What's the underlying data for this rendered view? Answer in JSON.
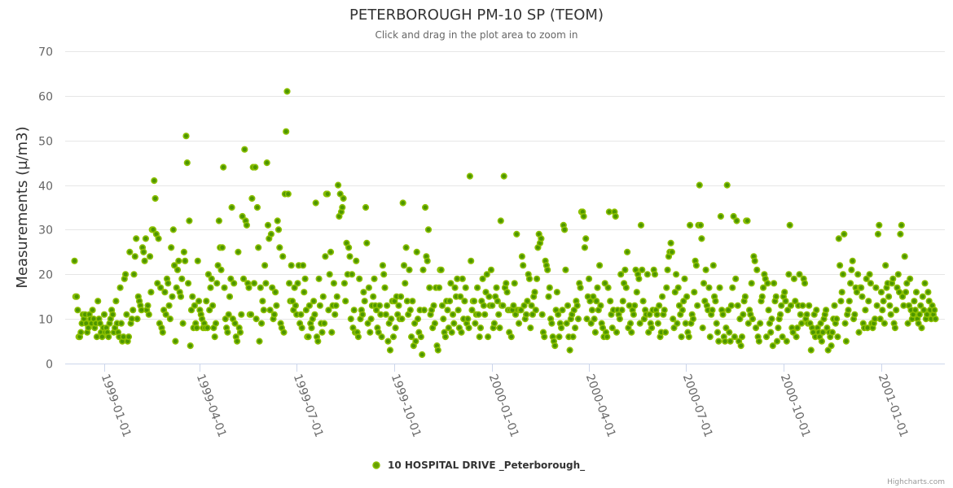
{
  "chart_data": {
    "type": "scatter",
    "title": "PETERBOROUGH PM-10 SP (TEOM)",
    "subtitle": "Click and drag in the plot area to zoom in",
    "xlabel": "",
    "ylabel": "Measurements (µ/m3)",
    "ylim": [
      0,
      70
    ],
    "yticks": [
      "0",
      "10",
      "20",
      "30",
      "40",
      "50",
      "60",
      "70"
    ],
    "xticks": [
      "1999-01-01",
      "1999-04-01",
      "1999-07-01",
      "1999-10-01",
      "2000-01-01",
      "2000-04-01",
      "2000-07-01",
      "2000-10-01",
      "2001-01-01"
    ],
    "grid": true,
    "legend_position": "bottom-center",
    "series": [
      {
        "name": "10 HOSPITAL DRIVE _Peterborough_",
        "color": "#66a000",
        "x_start": "1998-12-04",
        "x_interval_days": 1,
        "values": [
          23,
          15,
          15,
          12,
          6,
          6,
          7,
          9,
          11,
          10,
          11,
          9,
          7,
          8,
          11,
          10,
          9,
          12,
          10,
          8,
          9,
          6,
          14,
          10,
          9,
          7,
          6,
          8,
          11,
          7,
          8,
          7,
          6,
          9,
          10,
          12,
          11,
          7,
          8,
          14,
          9,
          7,
          6,
          17,
          9,
          5,
          6,
          19,
          20,
          11,
          5,
          6,
          25,
          9,
          10,
          12,
          20,
          24,
          28,
          10,
          15,
          14,
          13,
          12,
          26,
          25,
          23,
          28,
          12,
          13,
          11,
          24,
          16,
          30,
          30,
          41,
          37,
          29,
          18,
          28,
          9,
          17,
          8,
          7,
          12,
          16,
          11,
          19,
          18,
          13,
          10,
          26,
          15,
          30,
          22,
          5,
          17,
          21,
          23,
          16,
          15,
          19,
          9,
          25,
          23,
          51,
          45,
          18,
          32,
          4,
          12,
          15,
          8,
          13,
          9,
          8,
          23,
          14,
          12,
          11,
          10,
          8,
          9,
          8,
          14,
          8,
          20,
          12,
          17,
          19,
          13,
          8,
          6,
          9,
          18,
          22,
          32,
          26,
          21,
          26,
          44,
          17,
          10,
          8,
          7,
          11,
          15,
          19,
          35,
          10,
          18,
          9,
          6,
          5,
          25,
          8,
          7,
          11,
          33,
          19,
          48,
          32,
          31,
          18,
          17,
          11,
          11,
          37,
          44,
          18,
          44,
          10,
          35,
          26,
          5,
          17,
          9,
          14,
          12,
          22,
          18,
          45,
          31,
          28,
          12,
          29,
          17,
          10,
          11,
          16,
          13,
          32,
          30,
          26,
          9,
          8,
          24,
          7,
          38,
          52,
          61,
          38,
          18,
          14,
          22,
          14,
          12,
          17,
          13,
          11,
          18,
          22,
          9,
          11,
          8,
          22,
          16,
          19,
          12,
          6,
          6,
          13,
          9,
          8,
          10,
          14,
          11,
          36,
          6,
          5,
          19,
          13,
          9,
          7,
          15,
          9,
          24,
          38,
          38,
          12,
          20,
          25,
          7,
          13,
          18,
          11,
          13,
          15,
          40,
          33,
          38,
          34,
          35,
          37,
          18,
          14,
          27,
          20,
          26,
          24,
          10,
          20,
          8,
          12,
          7,
          23,
          7,
          6,
          19,
          10,
          12,
          11,
          16,
          14,
          35,
          27,
          9,
          17,
          7,
          10,
          13,
          15,
          19,
          13,
          12,
          8,
          7,
          13,
          11,
          6,
          22,
          20,
          17,
          11,
          13,
          5,
          9,
          3,
          10,
          14,
          6,
          14,
          8,
          15,
          11,
          13,
          10,
          15,
          10,
          36,
          22,
          18,
          26,
          14,
          11,
          21,
          12,
          6,
          14,
          4,
          9,
          5,
          25,
          10,
          7,
          12,
          6,
          2,
          21,
          12,
          35,
          24,
          23,
          30,
          17,
          11,
          12,
          8,
          13,
          9,
          17,
          4,
          3,
          17,
          21,
          21,
          13,
          10,
          7,
          6,
          14,
          12,
          8,
          14,
          18,
          7,
          11,
          9,
          17,
          15,
          19,
          12,
          8,
          15,
          7,
          19,
          10,
          14,
          17,
          9,
          10,
          8,
          42,
          23,
          12,
          14,
          14,
          9,
          11,
          17,
          11,
          6,
          8,
          14,
          19,
          13,
          11,
          16,
          20,
          6,
          15,
          13,
          21,
          13,
          8,
          9,
          15,
          17,
          14,
          11,
          8,
          32,
          13,
          13,
          42,
          17,
          18,
          16,
          12,
          7,
          12,
          6,
          12,
          13,
          18,
          11,
          29,
          12,
          9,
          12,
          12,
          24,
          22,
          13,
          10,
          11,
          14,
          20,
          19,
          8,
          13,
          11,
          15,
          16,
          12,
          19,
          26,
          29,
          27,
          28,
          11,
          7,
          6,
          23,
          22,
          21,
          15,
          17,
          10,
          9,
          6,
          5,
          4,
          12,
          16,
          11,
          6,
          9,
          8,
          12,
          31,
          30,
          21,
          9,
          13,
          6,
          3,
          10,
          11,
          6,
          12,
          8,
          14,
          13,
          10,
          18,
          17,
          34,
          34,
          33,
          26,
          28,
          10,
          15,
          19,
          14,
          9,
          12,
          15,
          10,
          7,
          14,
          17,
          12,
          22,
          13,
          9,
          8,
          6,
          18,
          7,
          6,
          17,
          34,
          14,
          11,
          8,
          12,
          34,
          33,
          7,
          12,
          11,
          10,
          20,
          12,
          14,
          18,
          21,
          17,
          25,
          8,
          13,
          9,
          7,
          12,
          11,
          13,
          21,
          16,
          20,
          19,
          9,
          31,
          21,
          14,
          10,
          12,
          11,
          20,
          7,
          11,
          9,
          8,
          12,
          21,
          20,
          12,
          11,
          9,
          13,
          6,
          7,
          15,
          11,
          12,
          7,
          17,
          21,
          24,
          25,
          27,
          25,
          10,
          8,
          16,
          20,
          9,
          17,
          13,
          11,
          6,
          12,
          14,
          19,
          9,
          15,
          7,
          6,
          31,
          9,
          11,
          10,
          16,
          23,
          22,
          13,
          31,
          40,
          31,
          28,
          8,
          18,
          14,
          21,
          13,
          12,
          17,
          6,
          11,
          12,
          22,
          15,
          14,
          9,
          7,
          5,
          17,
          33,
          12,
          11,
          6,
          5,
          8,
          40,
          12,
          7,
          5,
          13,
          17,
          33,
          6,
          19,
          32,
          13,
          5,
          10,
          4,
          6,
          11,
          14,
          15,
          32,
          32,
          9,
          12,
          11,
          18,
          10,
          24,
          23,
          8,
          21,
          6,
          5,
          9,
          14,
          15,
          17,
          20,
          19,
          6,
          18,
          12,
          9,
          7,
          10,
          4,
          18,
          14,
          15,
          5,
          8,
          10,
          11,
          13,
          6,
          15,
          16,
          14,
          5,
          12,
          20,
          31,
          13,
          8,
          7,
          19,
          14,
          6,
          8,
          13,
          20,
          11,
          9,
          13,
          19,
          18,
          10,
          11,
          9,
          13,
          9,
          3,
          8,
          7,
          11,
          6,
          12,
          8,
          7,
          6,
          9,
          5,
          7,
          10,
          11,
          12,
          8,
          3,
          7,
          6,
          4,
          7,
          10,
          13,
          9,
          10,
          6,
          28,
          22,
          14,
          16,
          20,
          29,
          9,
          5,
          11,
          12,
          14,
          18,
          21,
          23,
          10,
          11,
          17,
          16,
          20,
          7,
          17,
          17,
          15,
          9,
          8,
          12,
          19,
          8,
          14,
          20,
          18,
          9,
          8,
          9,
          10,
          17,
          13,
          29,
          31,
          10,
          16,
          12,
          14,
          9,
          22,
          17,
          18,
          15,
          13,
          11,
          18,
          19,
          9,
          8,
          12,
          17,
          20,
          16,
          29,
          31,
          15,
          13,
          24,
          16,
          18,
          9,
          13,
          19,
          12,
          10,
          11,
          14,
          12,
          16,
          10,
          9,
          11,
          13,
          8,
          15,
          12,
          18,
          10,
          11,
          16,
          14,
          12,
          10,
          13,
          11,
          12,
          10
        ]
      }
    ]
  },
  "credits": "Highcharts.com"
}
